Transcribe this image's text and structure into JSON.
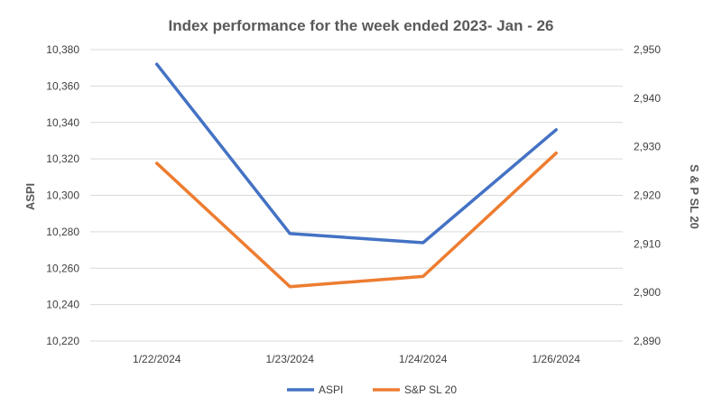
{
  "chart_data": {
    "type": "line",
    "title": "Index performance for the week ended 2023-  Jan - 26",
    "categories": [
      "1/22/2024",
      "1/23/2024",
      "1/24/2024",
      "1/26/2024"
    ],
    "y_left": {
      "label": "ASPI",
      "ylim": [
        10220,
        10380
      ],
      "ticks": [
        "10,220",
        "10,240",
        "10,260",
        "10,280",
        "10,300",
        "10,320",
        "10,340",
        "10,360",
        "10,380"
      ]
    },
    "y_right": {
      "label": "S & P SL 20",
      "ylim": [
        2890,
        2950
      ],
      "ticks": [
        "2,890",
        "2,900",
        "2,910",
        "2,920",
        "2,930",
        "2,940",
        "2,950"
      ]
    },
    "series": [
      {
        "name": "ASPI",
        "axis": "left",
        "color": "#4472C4",
        "values": [
          10372,
          10279,
          10274,
          10336
        ]
      },
      {
        "name": "S&P SL 20",
        "axis": "right",
        "color": "#ED7D31",
        "values": [
          2926.6,
          2901.2,
          2903.3,
          2928.7
        ]
      }
    ],
    "grid": true,
    "legend": "bottom"
  }
}
